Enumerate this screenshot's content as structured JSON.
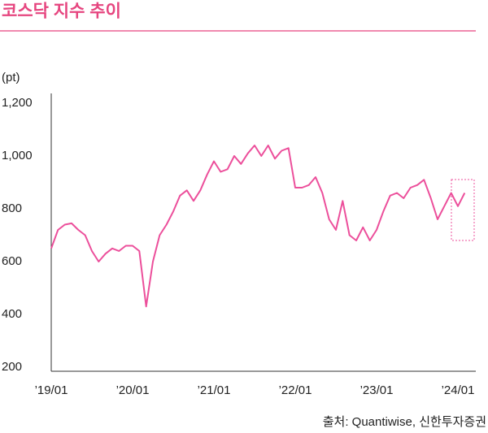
{
  "chart_data": {
    "type": "line",
    "title": "코스닥 지수 추이",
    "y_axis_label": "(pt)",
    "source": "출처: Quantiwise, 신한투자증권",
    "categories": [
      "’19/01",
      null,
      null,
      null,
      null,
      null,
      null,
      null,
      null,
      null,
      null,
      null,
      "’20/01",
      null,
      null,
      null,
      null,
      null,
      null,
      null,
      null,
      null,
      null,
      null,
      "’21/01",
      null,
      null,
      null,
      null,
      null,
      null,
      null,
      null,
      null,
      null,
      null,
      "’22/01",
      null,
      null,
      null,
      null,
      null,
      null,
      null,
      null,
      null,
      null,
      null,
      "’23/01",
      null,
      null,
      null,
      null,
      null,
      null,
      null,
      null,
      null,
      null,
      null,
      "’24/01",
      null
    ],
    "values": [
      650,
      720,
      740,
      745,
      720,
      700,
      640,
      600,
      630,
      650,
      640,
      660,
      660,
      640,
      430,
      600,
      700,
      740,
      790,
      850,
      870,
      830,
      870,
      930,
      980,
      940,
      950,
      1000,
      970,
      1010,
      1040,
      1000,
      1040,
      990,
      1020,
      1030,
      880,
      880,
      890,
      920,
      860,
      760,
      720,
      830,
      700,
      680,
      730,
      680,
      720,
      790,
      850,
      860,
      840,
      880,
      890,
      910,
      840,
      760,
      810,
      860,
      810,
      860
    ],
    "color": "#ec4f9b",
    "ylim": [
      200,
      1200
    ],
    "yticks": [
      200,
      400,
      600,
      800,
      {
        "value": 1000,
        "label": "1,000"
      },
      {
        "value": 1200,
        "label": "1,200"
      }
    ],
    "grid": false
  }
}
